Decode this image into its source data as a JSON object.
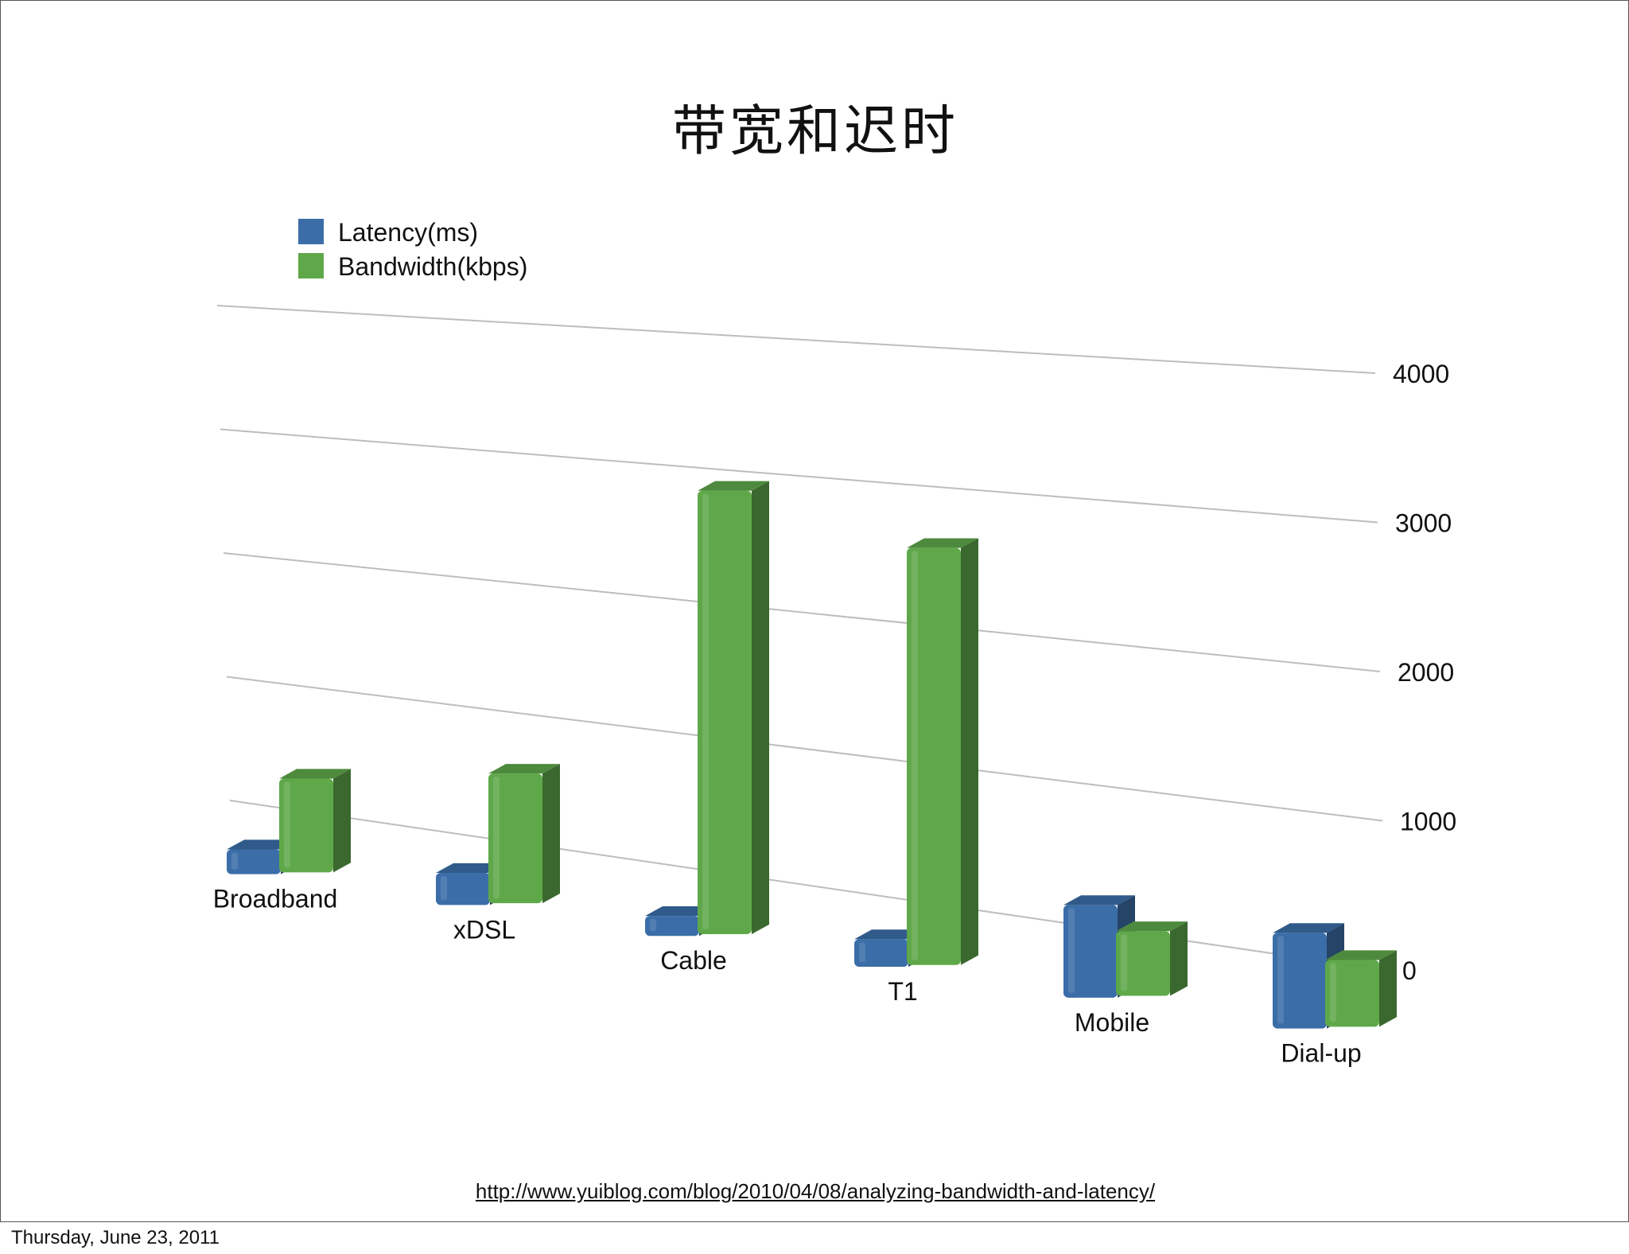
{
  "slide": {
    "title": "带宽和迟时",
    "source_link": "http://www.yuiblog.com/blog/2010/04/08/analyzing-bandwidth-and-latency/"
  },
  "footer": {
    "date": "Thursday, June 23, 2011"
  },
  "chart_data": {
    "type": "bar",
    "style": "3d-clustered-column",
    "categories": [
      "Broadband",
      "xDSL",
      "Cable",
      "T1",
      "Mobile",
      "Dial-up"
    ],
    "series": [
      {
        "name": "Latency(ms)",
        "color": "#3b6ea8",
        "values": [
          200,
          250,
          150,
          200,
          650,
          650
        ]
      },
      {
        "name": "Bandwidth(kbps)",
        "color": "#5fa84a",
        "values": [
          750,
          1000,
          3300,
          3000,
          450,
          450
        ]
      }
    ],
    "yticks": [
      0,
      1000,
      2000,
      3000,
      4000
    ],
    "ylim": [
      0,
      4000
    ],
    "grid": true,
    "legend_position": "top-left"
  }
}
